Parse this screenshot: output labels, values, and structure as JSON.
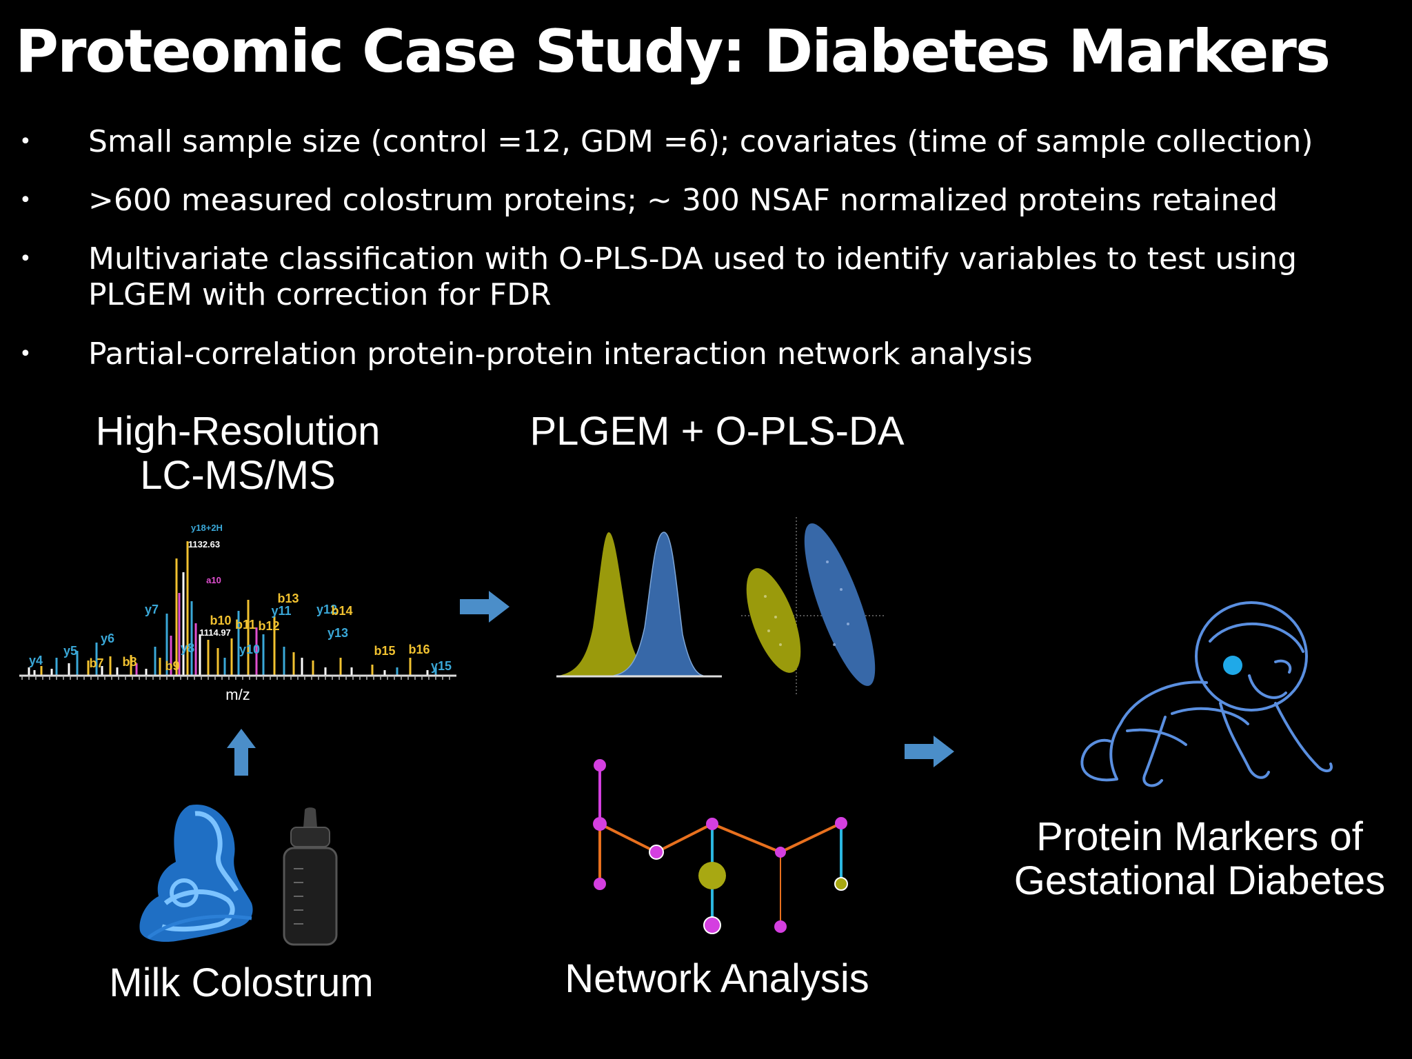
{
  "slide": {
    "title": "Proteomic Case Study: Diabetes Markers",
    "bullets": [
      "Small sample size (control =12, GDM =6); covariates (time of sample collection)",
      ">600 measured colostrum proteins; ~ 300 NSAF normalized proteins retained",
      "Multivariate classification with O-PLS-DA used to identify variables to test using PLGEM with correction for FDR",
      "Partial-correlation protein-protein interaction network analysis"
    ],
    "bullet_symbol": "•"
  },
  "figure": {
    "ms_label_line1": "High-Resolution",
    "ms_label_line2": "LC-MS/MS",
    "stats_label": "PLGEM + O-PLS-DA",
    "milk_label": "Milk Colostrum",
    "network_label": "Network Analysis",
    "markers_label_line1": "Protein Markers of",
    "markers_label_line2": "Gestational Diabetes",
    "spectrum": {
      "axis_label": "m/z",
      "peak_labels": [
        "y4",
        "y5",
        "y6",
        "y7",
        "b7",
        "b8",
        "b9",
        "y8",
        "b10",
        "b11",
        "b12",
        "b13",
        "y10",
        "y11",
        "y12",
        "b14",
        "y13",
        "b15",
        "b16",
        "y15",
        "y18+2H",
        "1132.63",
        "a10",
        "1114.97"
      ]
    },
    "icons": {
      "arrow": "arrow-right-icon",
      "arrow_up": "arrow-up-icon",
      "mother": "mother-baby-icon",
      "bottle": "baby-bottle-icon",
      "baby": "crawling-baby-icon"
    },
    "colors": {
      "arrow": "#4b8ec9",
      "olive": "#9a9a0c",
      "blue_dist": "#3768a8",
      "magenta": "#d43fe0",
      "orange": "#e8701e",
      "cyan": "#2bb6df",
      "baby_line": "#5a8fe0",
      "mother": "#4a9be6"
    }
  }
}
